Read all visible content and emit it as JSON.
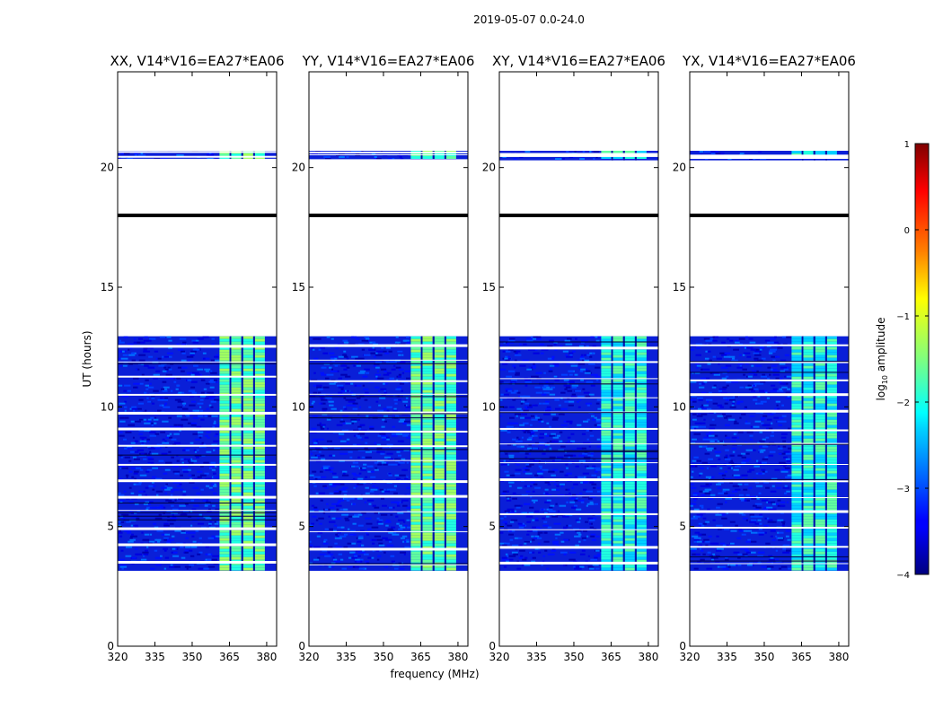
{
  "chart_data": {
    "type": "heatmap",
    "title": "2019-05-07 0.0-24.0",
    "xlabel": "frequency (MHz)",
    "ylabel": "UT (hours)",
    "xlim": [
      320,
      384
    ],
    "ylim": [
      0,
      24
    ],
    "xticks": [
      320,
      335,
      350,
      365,
      380
    ],
    "yticks": [
      0,
      5,
      10,
      15,
      20
    ],
    "panels": [
      {
        "name": "XX",
        "title": "XX, V14*V16=EA27*EA06"
      },
      {
        "name": "YY",
        "title": "YY, V14*V16=EA27*EA06"
      },
      {
        "name": "XY",
        "title": "XY, V14*V16=EA27*EA06"
      },
      {
        "name": "YX",
        "title": "YX, V14*V16=EA27*EA06"
      }
    ],
    "data_time_ranges": [
      [
        3.15,
        12.95
      ],
      [
        20.3,
        20.7
      ]
    ],
    "flagged_line_time": 18.0,
    "bright_band_freq_range": [
      361,
      380
    ],
    "colorbar": {
      "label": "log10 amplitude",
      "label_base": "log",
      "label_sub": "10",
      "label_rest": " amplitude",
      "min": -4,
      "max": 1,
      "ticks": [
        -4,
        -3,
        -2,
        -1,
        0,
        1
      ],
      "tick_labels": [
        "−4",
        "−3",
        "−2",
        "−1",
        "0",
        "1"
      ],
      "colormap": "jet"
    }
  }
}
